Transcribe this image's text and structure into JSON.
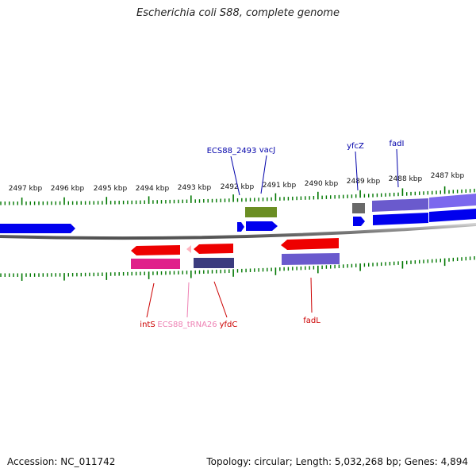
{
  "title": "Escherichia coli S88, complete genome",
  "accession": "Accession: NC_011742",
  "topology": "Topology: circular; Length: 5,032,268 bp; Genes: 4,894",
  "colors": {
    "forward_cds": "#0000ee",
    "reverse_cds": "#ee0000",
    "gene_purple": "#6a5acd",
    "gene_olive": "#6b8e23",
    "gene_magenta": "#e0218a",
    "gene_navy": "#3b3b7e",
    "gene_gray": "#696969",
    "trna": "#ffb6c1",
    "tick": "#007700",
    "label_forward": "#0000aa",
    "label_reverse": "#cc0000",
    "label_trna": "#ee82b4",
    "backbone": "#808080"
  },
  "scale_labels": [
    "2497 kbp",
    "2496 kbp",
    "2495 kbp",
    "2494 kbp",
    "2493 kbp",
    "2492 kbp",
    "2491 kbp",
    "2490 kbp",
    "2489 kbp",
    "2488 kbp",
    "2487 kbp"
  ],
  "gene_labels": [
    "ECS88_2493",
    "vacJ",
    "yfcZ",
    "fadI",
    "intS",
    "ECS88_tRNA26",
    "yfdC",
    "fadL"
  ]
}
